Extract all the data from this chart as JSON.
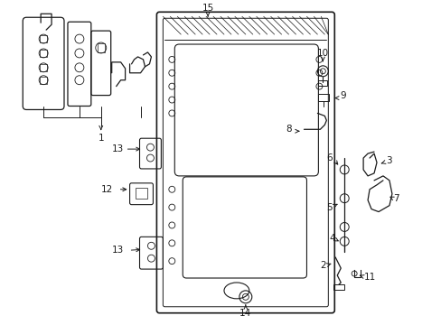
{
  "bg_color": "#ffffff",
  "line_color": "#1a1a1a",
  "text_color": "#000000",
  "fig_width": 4.89,
  "fig_height": 3.6,
  "dpi": 100,
  "font_size": 7.5
}
